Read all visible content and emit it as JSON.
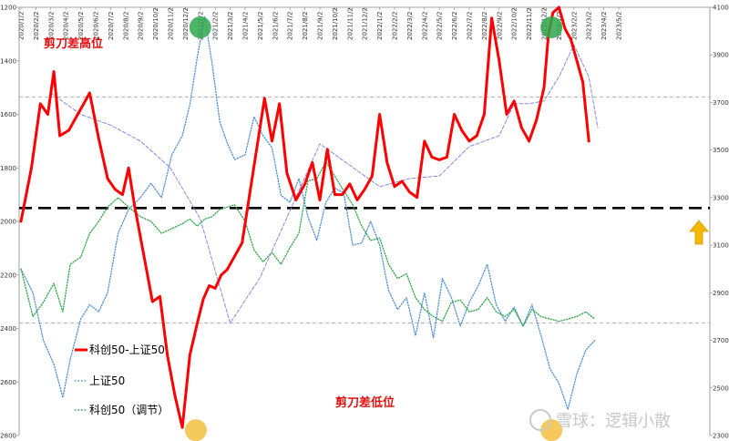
{
  "chart_data": {
    "type": "line",
    "x_dates": [
      "2020/1/2",
      "2020/2/2",
      "2020/3/2",
      "2020/4/2",
      "2020/5/2",
      "2020/6/2",
      "2020/7/2",
      "2020/8/2",
      "2020/9/2",
      "2020/10/2",
      "2020/11/2",
      "2020/12/2",
      "2021/1/2",
      "2021/2/2",
      "2021/3/2",
      "2021/4/2",
      "2021/5/2",
      "2021/6/2",
      "2021/7/2",
      "2021/8/2",
      "2021/9/2",
      "2021/10/2",
      "2021/11/2",
      "2021/12/2",
      "2022/1/2",
      "2022/2/2",
      "2022/3/2",
      "2022/4/2",
      "2022/5/2",
      "2022/6/2",
      "2022/7/2",
      "2022/8/2",
      "2022/9/2",
      "2022/10/2",
      "2022/11/2",
      "2022/12/2",
      "2023/1/2",
      "2023/2/2",
      "2023/3/2",
      "2023/4/2",
      "2023/5/2"
    ],
    "y_left_ticks": [
      "-1200",
      "-1400",
      "-1600",
      "-1800",
      "-2000",
      "-2200",
      "-2400",
      "-2600",
      "-2800"
    ],
    "y_right_ticks": [
      "4100",
      "3900",
      "3700",
      "3500",
      "3300",
      "3100",
      "2900",
      "2700",
      "2500",
      "2300"
    ],
    "ylim_left": [
      -2800,
      -1200
    ],
    "ylim_right": [
      2300,
      4100
    ],
    "series": [
      {
        "name": "科创50-上证50",
        "axis": "left",
        "color": "#ff0000",
        "style": "solid-thick",
        "x": [
          0,
          0.7,
          1.3,
          1.8,
          2.2,
          2.6,
          3.2,
          3.8,
          4.2,
          4.6,
          5.2,
          5.8,
          6.3,
          6.8,
          7.2,
          7.6,
          8.2,
          8.8,
          9.3,
          9.8,
          10.3,
          10.8,
          11.3,
          11.8,
          12.2,
          12.6,
          13.0,
          13.4,
          13.8,
          14.3,
          14.8,
          15.3,
          15.8,
          16.3,
          16.8,
          17.3,
          17.8,
          18.4,
          19.0,
          19.5,
          20.0,
          20.5,
          21.0,
          21.5,
          22.0,
          22.5,
          23.0,
          23.5,
          24.0,
          24.5,
          25.0,
          25.5,
          26.0,
          26.5,
          27.0,
          27.5,
          28.0,
          28.5,
          29.0,
          29.5,
          30.0,
          30.5,
          31.0,
          31.5,
          32.0,
          32.5,
          33.0,
          33.5,
          34.0,
          34.5,
          35.0,
          35.3,
          35.6,
          36.0,
          36.4,
          36.8,
          37.2,
          37.6,
          38.0
        ],
        "values": [
          -2000,
          -1800,
          -1560,
          -1600,
          -1440,
          -1680,
          -1660,
          -1600,
          -1560,
          -1520,
          -1690,
          -1840,
          -1880,
          -1900,
          -1800,
          -1940,
          -2120,
          -2300,
          -2280,
          -2500,
          -2650,
          -2770,
          -2500,
          -2380,
          -2290,
          -2240,
          -2250,
          -2200,
          -2180,
          -2130,
          -2080,
          -1900,
          -1720,
          -1540,
          -1700,
          -1560,
          -1820,
          -1920,
          -1860,
          -1780,
          -1920,
          -1730,
          -1900,
          -1900,
          -1860,
          -1920,
          -1880,
          -1830,
          -1600,
          -1780,
          -1870,
          -1850,
          -1890,
          -1910,
          -1700,
          -1760,
          -1770,
          -1760,
          -1600,
          -1660,
          -1700,
          -1680,
          -1600,
          -1240,
          -1400,
          -1600,
          -1550,
          -1650,
          -1700,
          -1620,
          -1500,
          -1300,
          -1220,
          -1200,
          -1280,
          -1320,
          -1400,
          -1480,
          -1700
        ]
      },
      {
        "name": "上证50",
        "axis": "right",
        "color": "#4f90d6",
        "style": "dotted",
        "x": [
          0,
          0.8,
          1.5,
          2.2,
          2.8,
          3.3,
          4.0,
          4.6,
          5.2,
          5.8,
          6.5,
          7.2,
          8.0,
          8.7,
          9.4,
          10.1,
          10.8,
          11.3,
          11.8,
          12.3,
          12.8,
          13.3,
          13.8,
          14.3,
          15.0,
          15.6,
          16.2,
          16.8,
          17.4,
          18.0,
          18.6,
          19.2,
          19.8,
          20.4,
          21.0,
          21.6,
          22.2,
          22.8,
          23.4,
          24.0,
          24.6,
          25.2,
          25.8,
          26.4,
          27.0,
          27.6,
          28.2,
          28.8,
          29.4,
          30.0,
          30.6,
          31.2,
          31.8,
          32.4,
          33.0,
          33.6,
          34.2,
          34.8,
          35.4,
          36.0,
          36.6,
          37.2,
          37.8,
          38.4
        ],
        "values": [
          3000,
          2900,
          2700,
          2600,
          2460,
          2620,
          2790,
          2850,
          2820,
          2900,
          3150,
          3250,
          3300,
          3360,
          3300,
          3480,
          3560,
          3690,
          3890,
          4060,
          3860,
          3620,
          3530,
          3460,
          3480,
          3640,
          3560,
          3510,
          3310,
          3280,
          3380,
          3220,
          3120,
          3280,
          3340,
          3320,
          3100,
          3110,
          3200,
          3100,
          2910,
          2830,
          2880,
          2720,
          2900,
          2710,
          2960,
          2880,
          2760,
          2860,
          2930,
          3020,
          2850,
          2780,
          2840,
          2760,
          2850,
          2720,
          2580,
          2520,
          2410,
          2560,
          2660,
          2700
        ]
      },
      {
        "name": "科创50（调节）",
        "axis": "right",
        "color": "#2ea84a",
        "style": "dotted",
        "x": [
          0,
          0.8,
          1.5,
          2.2,
          2.8,
          3.3,
          4.0,
          4.6,
          5.2,
          5.8,
          6.5,
          7.2,
          8.0,
          8.7,
          9.4,
          10.1,
          10.8,
          11.3,
          11.8,
          12.3,
          12.8,
          13.3,
          13.8,
          14.3,
          15.0,
          15.6,
          16.2,
          16.8,
          17.4,
          18.0,
          18.6,
          19.2,
          19.8,
          20.4,
          21.0,
          21.6,
          22.2,
          22.8,
          23.4,
          24.0,
          24.6,
          25.2,
          25.8,
          26.4,
          27.0,
          27.6,
          28.2,
          28.8,
          29.4,
          30.0,
          30.6,
          31.2,
          31.8,
          32.4,
          33.0,
          33.6,
          34.2,
          34.8,
          35.4,
          36.0,
          36.6,
          37.2,
          37.8,
          38.4
        ],
        "values": [
          3000,
          2800,
          2860,
          2940,
          2820,
          3020,
          3050,
          3150,
          3200,
          3260,
          3300,
          3260,
          3220,
          3200,
          3150,
          3170,
          3190,
          3210,
          3180,
          3210,
          3220,
          3250,
          3260,
          3270,
          3200,
          3080,
          3030,
          3070,
          3020,
          3090,
          3150,
          3370,
          3380,
          3450,
          3390,
          3330,
          3270,
          3180,
          3120,
          3130,
          3020,
          2960,
          2980,
          2880,
          2830,
          2800,
          2780,
          2860,
          2870,
          2820,
          2830,
          2880,
          2820,
          2800,
          2830,
          2760,
          2830,
          2800,
          2790,
          2780,
          2790,
          2800,
          2820,
          2790
        ]
      },
      {
        "name": "",
        "axis": "left",
        "color": "#7d7de0",
        "style": "dashed-thin",
        "x": [
          2,
          4,
          6,
          8,
          10,
          12,
          14,
          16,
          18,
          20,
          22,
          24,
          26,
          28,
          30,
          32,
          33,
          34,
          35,
          36,
          37,
          38,
          38.6
        ],
        "values": [
          -1520,
          -1600,
          -1640,
          -1700,
          -1800,
          -1990,
          -2380,
          -2210,
          -1960,
          -1710,
          -1790,
          -1870,
          -1840,
          -1830,
          -1720,
          -1680,
          -1560,
          -1560,
          -1550,
          -1460,
          -1340,
          -1460,
          -1650
        ]
      }
    ],
    "reference_lines": [
      {
        "axis": "left",
        "value": -1950,
        "color": "#000000",
        "style": "thick-dashed"
      },
      {
        "axis": "left",
        "value": -1535,
        "color": "#a0a0a0",
        "style": "thin-dashed"
      },
      {
        "axis": "left",
        "value": -2380,
        "color": "#a0a0a0",
        "style": "thin-dashed"
      }
    ],
    "annotations": {
      "high": "剪刀差高位",
      "low": "剪刀差低位"
    },
    "markers": [
      {
        "type": "circle",
        "color": "#2ea84a",
        "axis": "left",
        "x": 12.0,
        "value": -1200
      },
      {
        "type": "circle",
        "color": "#2ea84a",
        "axis": "left",
        "x": 35.5,
        "value": -1200
      },
      {
        "type": "circle",
        "color": "#f5c040",
        "axis": "left",
        "x": 11.7,
        "value": -2780
      },
      {
        "type": "circle",
        "color": "#f5c040",
        "axis": "left",
        "x": 35.5,
        "value": -2780
      }
    ],
    "legend": [
      {
        "label": "科创50-上证50"
      },
      {
        "label": "上证50"
      },
      {
        "label": "科创50（调节）"
      }
    ],
    "legend_position": "bottom-left",
    "grid": false
  },
  "watermark": "雪球：逻辑小散",
  "arrow_icon": "up-arrow-icon",
  "arrow_color": "#f5b800"
}
